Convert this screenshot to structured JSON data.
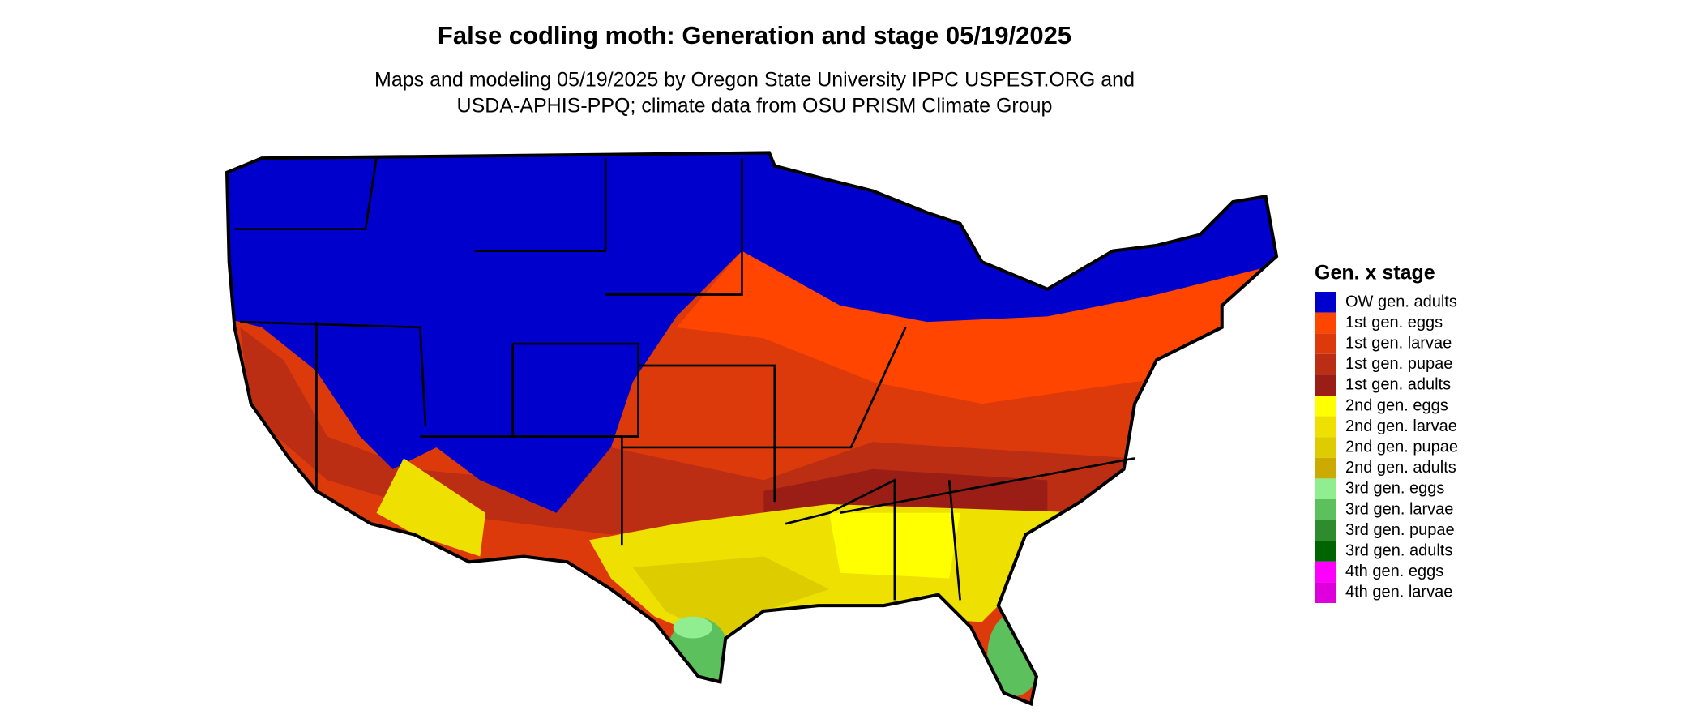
{
  "title": "False codling moth: Generation and stage 05/19/2025",
  "subtitle": [
    "Maps and modeling 05/19/2025 by Oregon State University IPPC USPEST.ORG and",
    "USDA-APHIS-PPQ; climate data from OSU PRISM Climate Group"
  ],
  "legend": {
    "title": "Gen. x stage",
    "items": [
      {
        "name": "OW gen. adults",
        "color": "#0000cc"
      },
      {
        "name": "1st gen. eggs",
        "color": "#ff4500"
      },
      {
        "name": "1st gen. larvae",
        "color": "#dd3a0c"
      },
      {
        "name": "1st gen. pupae",
        "color": "#bb2e14"
      },
      {
        "name": "1st gen. adults",
        "color": "#9a1e16"
      },
      {
        "name": "2nd gen. eggs",
        "color": "#ffff00"
      },
      {
        "name": "2nd gen. larvae",
        "color": "#eee000"
      },
      {
        "name": "2nd gen. pupae",
        "color": "#ddcc00"
      },
      {
        "name": "2nd gen. adults",
        "color": "#ccaa00"
      },
      {
        "name": "3rd gen. eggs",
        "color": "#90ee90"
      },
      {
        "name": "3rd gen. larvae",
        "color": "#5cc05c"
      },
      {
        "name": "3rd gen. pupae",
        "color": "#2e8b2e"
      },
      {
        "name": "3rd gen. adults",
        "color": "#006400"
      },
      {
        "name": "4th gen. eggs",
        "color": "#ff00ff"
      },
      {
        "name": "4th gen. larvae",
        "color": "#dd00dd"
      }
    ]
  }
}
